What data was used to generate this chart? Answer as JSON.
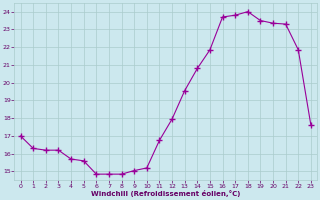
{
  "x": [
    0,
    1,
    2,
    3,
    4,
    5,
    6,
    7,
    8,
    9,
    10,
    11,
    12,
    13,
    14,
    15,
    16,
    17,
    18,
    19,
    20,
    21,
    22,
    23
  ],
  "y": [
    17.0,
    16.3,
    16.2,
    16.2,
    15.7,
    15.6,
    14.85,
    14.85,
    14.85,
    15.05,
    15.2,
    16.75,
    17.95,
    19.55,
    20.8,
    21.85,
    23.7,
    23.8,
    24.0,
    23.5,
    23.35,
    23.3,
    21.85,
    17.6
  ],
  "xlabel": "Windchill (Refroidissement éolien,°C)",
  "ylim": [
    14.5,
    24.5
  ],
  "xlim": [
    -0.5,
    23.5
  ],
  "yticks": [
    15,
    16,
    17,
    18,
    19,
    20,
    21,
    22,
    23,
    24
  ],
  "xticks": [
    0,
    1,
    2,
    3,
    4,
    5,
    6,
    7,
    8,
    9,
    10,
    11,
    12,
    13,
    14,
    15,
    16,
    17,
    18,
    19,
    20,
    21,
    22,
    23
  ],
  "line_color": "#990099",
  "marker_color": "#990099",
  "bg_color": "#cce8ee",
  "grid_color": "#aacccc",
  "tick_label_color": "#660066",
  "xlabel_color": "#660066"
}
